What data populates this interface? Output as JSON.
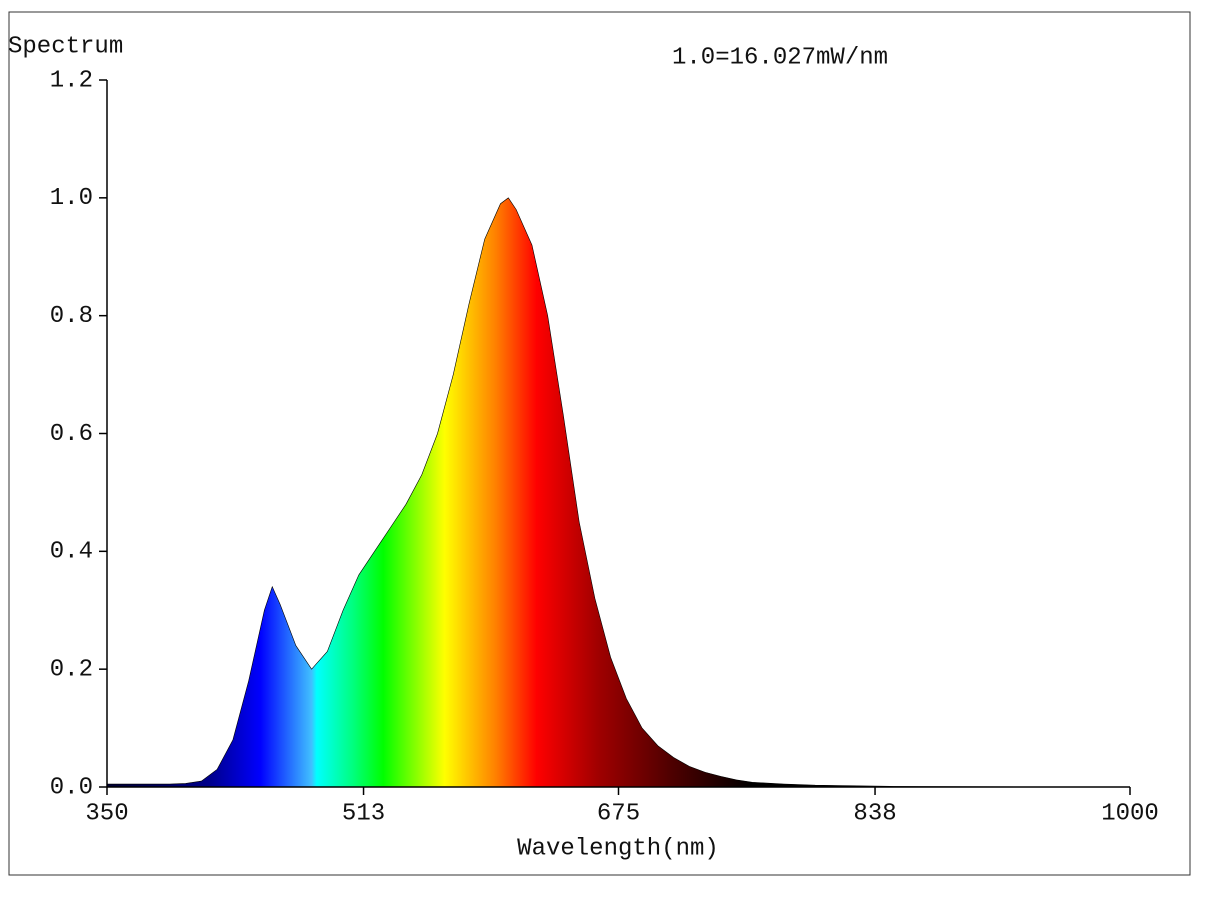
{
  "chart_data": {
    "type": "area",
    "y_label": "Spectrum",
    "annotation": "1.0=16.027mW/nm",
    "x_label": "Wavelength(nm)",
    "x": [
      350,
      360,
      370,
      380,
      390,
      400,
      410,
      420,
      430,
      440,
      450,
      455,
      460,
      470,
      480,
      490,
      500,
      510,
      520,
      530,
      540,
      550,
      560,
      570,
      580,
      590,
      600,
      605,
      610,
      620,
      630,
      640,
      650,
      660,
      670,
      680,
      690,
      700,
      710,
      720,
      730,
      740,
      750,
      760,
      780,
      800,
      850,
      900,
      1000
    ],
    "values": [
      0.005,
      0.005,
      0.005,
      0.005,
      0.005,
      0.006,
      0.01,
      0.03,
      0.08,
      0.18,
      0.3,
      0.34,
      0.31,
      0.24,
      0.2,
      0.23,
      0.3,
      0.36,
      0.4,
      0.44,
      0.48,
      0.53,
      0.6,
      0.7,
      0.82,
      0.93,
      0.99,
      1.0,
      0.98,
      0.92,
      0.8,
      0.63,
      0.45,
      0.32,
      0.22,
      0.15,
      0.1,
      0.07,
      0.05,
      0.035,
      0.025,
      0.018,
      0.012,
      0.008,
      0.005,
      0.003,
      0.001,
      0.0005,
      0
    ],
    "xlim": [
      350,
      1000
    ],
    "xticks": [
      350,
      513,
      675,
      838,
      1000
    ],
    "ylim": [
      0,
      1.2
    ],
    "yticks": [
      {
        "value": 0,
        "label": "0.0"
      },
      0.2,
      0.4,
      0.6,
      0.8,
      {
        "value": 1,
        "label": "1.0"
      },
      1.2
    ]
  }
}
